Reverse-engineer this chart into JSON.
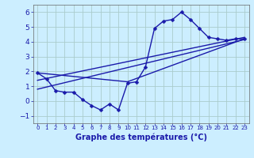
{
  "title": "Graphe des températures (°C)",
  "background_color": "#cceeff",
  "plot_bg_color": "#cceeff",
  "grid_color": "#aacccc",
  "line_color": "#1a1aaa",
  "xlabel_bar_color": "#2244bb",
  "xlim": [
    -0.5,
    23.5
  ],
  "ylim": [
    -1.5,
    6.5
  ],
  "yticks": [
    -1,
    0,
    1,
    2,
    3,
    4,
    5,
    6
  ],
  "xticks": [
    0,
    1,
    2,
    3,
    4,
    5,
    6,
    7,
    8,
    9,
    10,
    11,
    12,
    13,
    14,
    15,
    16,
    17,
    18,
    19,
    20,
    21,
    22,
    23
  ],
  "series": [
    {
      "x": [
        0,
        1,
        2,
        3,
        4,
        5,
        6,
        7,
        8,
        9,
        10,
        11,
        12,
        13,
        14,
        15,
        16,
        17,
        18,
        19,
        20,
        21,
        22,
        23
      ],
      "y": [
        1.9,
        1.5,
        0.7,
        0.6,
        0.6,
        0.1,
        -0.3,
        -0.6,
        -0.2,
        -0.6,
        1.2,
        1.3,
        2.3,
        4.9,
        5.4,
        5.5,
        6.0,
        5.5,
        4.9,
        4.3,
        4.2,
        4.1,
        4.2,
        4.2
      ],
      "marker": "D",
      "markersize": 2.5,
      "linewidth": 1.0,
      "with_marker": true
    },
    {
      "x": [
        0,
        10,
        23
      ],
      "y": [
        1.9,
        1.3,
        4.2
      ],
      "marker": null,
      "linewidth": 1.0,
      "with_marker": false
    },
    {
      "x": [
        0,
        23
      ],
      "y": [
        1.4,
        4.3
      ],
      "marker": null,
      "linewidth": 1.0,
      "with_marker": false
    },
    {
      "x": [
        0,
        23
      ],
      "y": [
        0.8,
        4.15
      ],
      "marker": null,
      "linewidth": 1.0,
      "with_marker": false
    }
  ]
}
